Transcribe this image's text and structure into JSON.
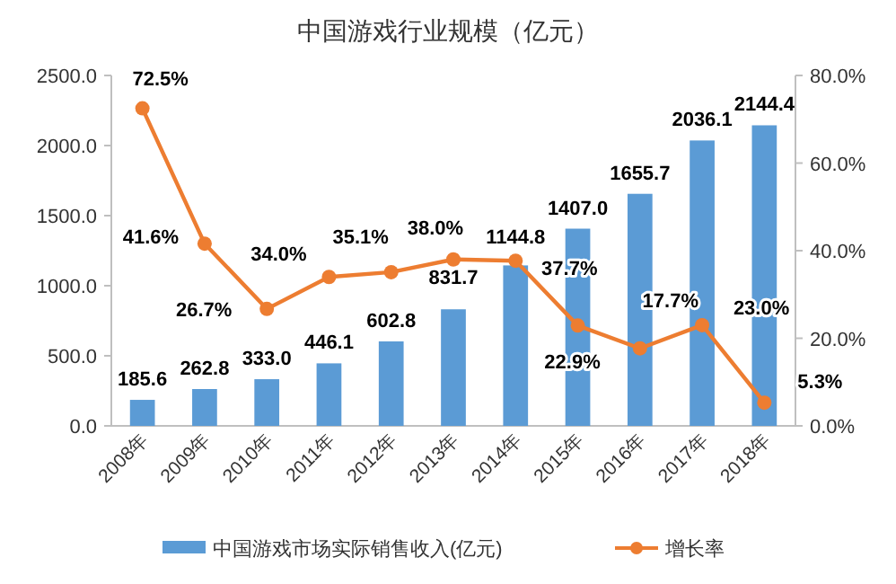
{
  "chart_data": {
    "type": "bar",
    "title": "中国游戏行业规模（亿元）",
    "categories": [
      "2008年",
      "2009年",
      "2010年",
      "2011年",
      "2012年",
      "2013年",
      "2014年",
      "2015年",
      "2016年",
      "2017年",
      "2018年"
    ],
    "series": [
      {
        "name": "中国游戏市场实际销售收入(亿元)",
        "color": "#5b9bd5",
        "values": [
          185.6,
          262.8,
          333.0,
          446.1,
          602.8,
          831.7,
          1144.8,
          1407.0,
          1655.7,
          2036.1,
          2144.4
        ],
        "value_labels": [
          "185.6",
          "262.8",
          "333.0",
          "446.1",
          "602.8",
          "831.7",
          "1144.8",
          "1407.0",
          "1655.7",
          "2036.1",
          "2144.4"
        ]
      },
      {
        "name": "增长率",
        "type": "line",
        "axis": "y2",
        "color": "#ed7d31",
        "values": [
          72.5,
          41.6,
          26.7,
          34.0,
          35.1,
          38.0,
          37.7,
          22.9,
          17.7,
          23.0,
          5.3
        ],
        "value_labels": [
          "72.5%",
          "41.6%",
          "26.7%",
          "34.0%",
          "35.1%",
          "38.0%",
          "37.7%",
          "22.9%",
          "17.7%",
          "23.0%",
          "5.3%"
        ]
      }
    ],
    "ylim": [
      0,
      2500
    ],
    "yticks": [
      {
        "value": 0,
        "label": "0.0"
      },
      {
        "value": 500,
        "label": "500.0"
      },
      {
        "value": 1000,
        "label": "1000.0"
      },
      {
        "value": 1500,
        "label": "1500.0"
      },
      {
        "value": 2000,
        "label": "2000.0"
      },
      {
        "value": 2500,
        "label": "2500.0"
      }
    ],
    "y2lim": [
      0,
      80
    ],
    "y2ticks": [
      {
        "value": 0,
        "label": "0.0%"
      },
      {
        "value": 20,
        "label": "20.0%"
      },
      {
        "value": 40,
        "label": "40.0%"
      },
      {
        "value": 60,
        "label": "60.0%"
      },
      {
        "value": 80,
        "label": "80.0%"
      }
    ],
    "legend": "bottom",
    "marker": "circle",
    "line_style": "solid",
    "grid": false
  }
}
